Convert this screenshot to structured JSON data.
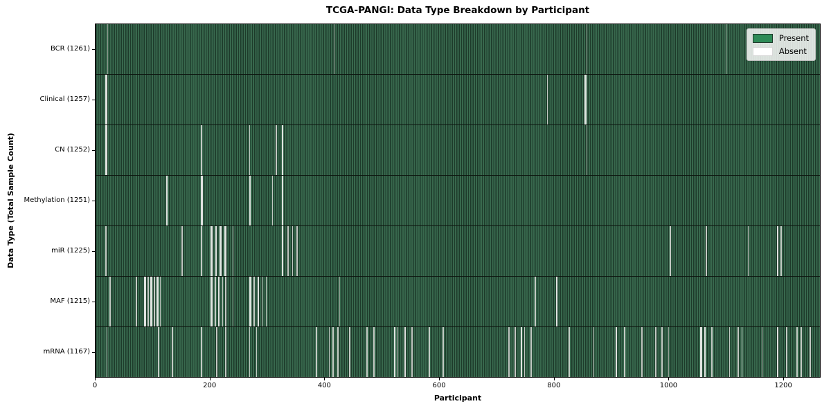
{
  "figure": {
    "title": "TCGA-PANGI: Data Type Breakdown by Participant",
    "xlabel": "Participant",
    "ylabel": "Data Type (Total Sample Count)"
  },
  "legend": {
    "items": [
      {
        "label": "Present",
        "color": "#2e8b57",
        "kind": "present"
      },
      {
        "label": "Absent",
        "color": "#ffffff",
        "kind": "absent"
      }
    ],
    "position": "upper right"
  },
  "chart_data": {
    "type": "heatmap",
    "title": "TCGA-PANGI: Data Type Breakdown by Participant",
    "xlabel": "Participant",
    "ylabel": "Data Type (Total Sample Count)",
    "x_ticks": [
      0,
      200,
      400,
      600,
      800,
      1000,
      1200
    ],
    "x_range": [
      0,
      1265
    ],
    "n_participants": 1265,
    "grid": false,
    "legend_position": "upper right",
    "colors": {
      "present": "#2e8b57",
      "absent": "#ffffff",
      "bar_texture_light": "#38684d",
      "bar_texture_dark": "#1d3a2a"
    },
    "rows": [
      {
        "data_type": "BCR",
        "label": "BCR (1261)",
        "total_samples": 1261,
        "absent_segments": [
          [
            20,
            1
          ],
          [
            416,
            1
          ],
          [
            857,
            1
          ],
          [
            1100,
            1
          ]
        ]
      },
      {
        "data_type": "Clinical",
        "label": "Clinical (1257)",
        "total_samples": 1257,
        "absent_segments": [
          [
            17,
            3
          ],
          [
            788,
            2
          ],
          [
            854,
            3
          ]
        ]
      },
      {
        "data_type": "CN",
        "label": "CN (1252)",
        "total_samples": 1252,
        "absent_segments": [
          [
            17,
            3
          ],
          [
            184,
            2
          ],
          [
            268,
            2
          ],
          [
            315,
            2
          ],
          [
            325,
            3
          ],
          [
            857,
            1
          ]
        ]
      },
      {
        "data_type": "Methylation",
        "label": "Methylation (1251)",
        "total_samples": 1251,
        "absent_segments": [
          [
            123,
            3
          ],
          [
            184,
            3
          ],
          [
            268,
            3
          ],
          [
            308,
            2
          ],
          [
            325,
            3
          ]
        ]
      },
      {
        "data_type": "miR",
        "label": "miR (1225)",
        "total_samples": 1225,
        "absent_segments": [
          [
            17,
            2
          ],
          [
            150,
            2
          ],
          [
            184,
            2
          ],
          [
            201,
            3
          ],
          [
            209,
            3
          ],
          [
            217,
            3
          ],
          [
            225,
            3
          ],
          [
            239,
            2
          ],
          [
            325,
            3
          ],
          [
            335,
            2
          ],
          [
            343,
            2
          ],
          [
            351,
            2
          ],
          [
            1003,
            2
          ],
          [
            1066,
            2
          ],
          [
            1139,
            2
          ],
          [
            1190,
            3
          ],
          [
            1196,
            2
          ]
        ]
      },
      {
        "data_type": "MAF",
        "label": "MAF (1215)",
        "total_samples": 1215,
        "absent_segments": [
          [
            24,
            2
          ],
          [
            70,
            2
          ],
          [
            85,
            3
          ],
          [
            91,
            2
          ],
          [
            96,
            3
          ],
          [
            102,
            2
          ],
          [
            107,
            3
          ],
          [
            112,
            2
          ],
          [
            201,
            3
          ],
          [
            208,
            2
          ],
          [
            214,
            3
          ],
          [
            221,
            2
          ],
          [
            226,
            2
          ],
          [
            239,
            1
          ],
          [
            269,
            3
          ],
          [
            276,
            2
          ],
          [
            283,
            3
          ],
          [
            290,
            2
          ],
          [
            297,
            2
          ],
          [
            426,
            1
          ],
          [
            767,
            2
          ],
          [
            804,
            3
          ]
        ]
      },
      {
        "data_type": "mRNA",
        "label": "mRNA (1167)",
        "total_samples": 1167,
        "absent_segments": [
          [
            19,
            2
          ],
          [
            109,
            2
          ],
          [
            133,
            2
          ],
          [
            184,
            2
          ],
          [
            211,
            2
          ],
          [
            226,
            2
          ],
          [
            268,
            2
          ],
          [
            280,
            2
          ],
          [
            385,
            2
          ],
          [
            407,
            2
          ],
          [
            414,
            2
          ],
          [
            422,
            2
          ],
          [
            443,
            2
          ],
          [
            473,
            2
          ],
          [
            485,
            2
          ],
          [
            521,
            3
          ],
          [
            527,
            2
          ],
          [
            539,
            3
          ],
          [
            552,
            2
          ],
          [
            582,
            2
          ],
          [
            606,
            2
          ],
          [
            721,
            2
          ],
          [
            732,
            2
          ],
          [
            742,
            3
          ],
          [
            748,
            2
          ],
          [
            760,
            2
          ],
          [
            826,
            2
          ],
          [
            869,
            2
          ],
          [
            908,
            3
          ],
          [
            923,
            2
          ],
          [
            953,
            2
          ],
          [
            977,
            2
          ],
          [
            988,
            2
          ],
          [
            1000,
            1
          ],
          [
            1056,
            3
          ],
          [
            1063,
            3
          ],
          [
            1075,
            2
          ],
          [
            1106,
            2
          ],
          [
            1121,
            2
          ],
          [
            1128,
            2
          ],
          [
            1163,
            2
          ],
          [
            1190,
            3
          ],
          [
            1206,
            2
          ],
          [
            1224,
            2
          ],
          [
            1231,
            2
          ],
          [
            1247,
            2
          ]
        ]
      }
    ]
  }
}
